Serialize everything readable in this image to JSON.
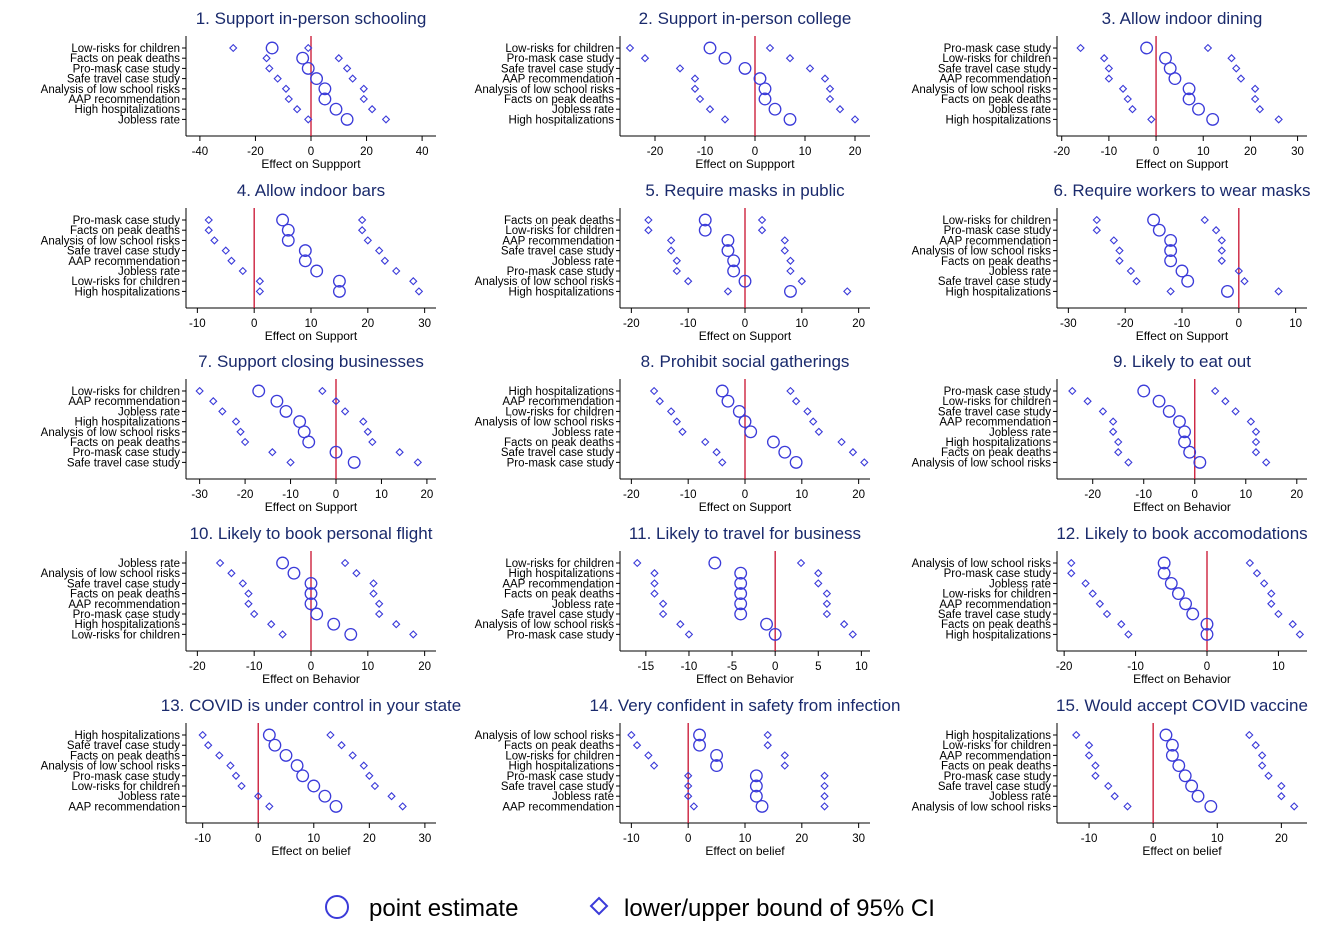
{
  "colors": {
    "marker": "#3b3bd9",
    "zero_line": "#c8102e",
    "axis": "#000000",
    "title": "#1a2a6c"
  },
  "legend": {
    "point_label": "point estimate",
    "ci_label": "lower/upper bound of 95% CI",
    "point_icon": "circle-icon",
    "ci_icon": "diamond-icon"
  },
  "chart_data": [
    {
      "type": "scatter",
      "title": "1. Support in-person schooling",
      "xlabel": "Effect on Suppport",
      "xlim": [
        -45,
        45
      ],
      "xticks": [
        -40,
        -20,
        0,
        20,
        40
      ],
      "rows": [
        {
          "label": "Low-risks for children",
          "lo": -28,
          "est": -14,
          "hi": -1
        },
        {
          "label": "Facts on peak deaths",
          "lo": -16,
          "est": -3,
          "hi": 10
        },
        {
          "label": "Pro-mask case study",
          "lo": -15,
          "est": -1,
          "hi": 13
        },
        {
          "label": "Safe travel case study",
          "lo": -12,
          "est": 2,
          "hi": 15
        },
        {
          "label": "Analysis of low school risks",
          "lo": -9,
          "est": 5,
          "hi": 19
        },
        {
          "label": "AAP recommendation",
          "lo": -8,
          "est": 5,
          "hi": 19
        },
        {
          "label": "High hospitalizations",
          "lo": -5,
          "est": 9,
          "hi": 22
        },
        {
          "label": "Jobless rate",
          "lo": -1,
          "est": 13,
          "hi": 27
        }
      ]
    },
    {
      "type": "scatter",
      "title": "2. Support in-person college",
      "xlabel": "Effect on Suppport",
      "xlim": [
        -27,
        23
      ],
      "xticks": [
        -20,
        -10,
        0,
        10,
        20
      ],
      "rows": [
        {
          "label": "Low-risks for children",
          "lo": -25,
          "est": -9,
          "hi": 3
        },
        {
          "label": "Pro-mask case study",
          "lo": -22,
          "est": -6,
          "hi": 7
        },
        {
          "label": "Safe travel case study",
          "lo": -15,
          "est": -2,
          "hi": 11
        },
        {
          "label": "AAP recommendation",
          "lo": -12,
          "est": 1,
          "hi": 14
        },
        {
          "label": "Analysis of low school risks",
          "lo": -12,
          "est": 2,
          "hi": 15
        },
        {
          "label": "Facts on peak deaths",
          "lo": -11,
          "est": 2,
          "hi": 15
        },
        {
          "label": "Jobless rate",
          "lo": -9,
          "est": 4,
          "hi": 17
        },
        {
          "label": "High hospitalizations",
          "lo": -6,
          "est": 7,
          "hi": 20
        }
      ]
    },
    {
      "type": "scatter",
      "title": "3. Allow indoor dining",
      "xlabel": "Effect on Support",
      "xlim": [
        -21,
        32
      ],
      "xticks": [
        -20,
        -10,
        0,
        10,
        20,
        30
      ],
      "rows": [
        {
          "label": "Pro-mask case study",
          "lo": -16,
          "est": -2,
          "hi": 11
        },
        {
          "label": "Low-risks for children",
          "lo": -11,
          "est": 2,
          "hi": 16
        },
        {
          "label": "Safe travel case study",
          "lo": -10,
          "est": 3,
          "hi": 17
        },
        {
          "label": "AAP recommendation",
          "lo": -10,
          "est": 4,
          "hi": 18
        },
        {
          "label": "Analysis of low school risks",
          "lo": -7,
          "est": 7,
          "hi": 21
        },
        {
          "label": "Facts on peak deaths",
          "lo": -6,
          "est": 7,
          "hi": 21
        },
        {
          "label": "Jobless rate",
          "lo": -5,
          "est": 9,
          "hi": 22
        },
        {
          "label": "High hospitalizations",
          "lo": -1,
          "est": 12,
          "hi": 26
        }
      ]
    },
    {
      "type": "scatter",
      "title": "4. Allow indoor bars",
      "xlabel": "Effect on Support",
      "xlim": [
        -12,
        32
      ],
      "xticks": [
        -10,
        0,
        10,
        20,
        30
      ],
      "rows": [
        {
          "label": "Pro-mask case study",
          "lo": -8,
          "est": 5,
          "hi": 19
        },
        {
          "label": "Facts on peak deaths",
          "lo": -8,
          "est": 6,
          "hi": 19
        },
        {
          "label": "Analysis of low school risks",
          "lo": -7,
          "est": 6,
          "hi": 20
        },
        {
          "label": "Safe travel case study",
          "lo": -5,
          "est": 9,
          "hi": 22
        },
        {
          "label": "AAP recommendation",
          "lo": -4,
          "est": 9,
          "hi": 23
        },
        {
          "label": "Jobless rate",
          "lo": -2,
          "est": 11,
          "hi": 25
        },
        {
          "label": "Low-risks for children",
          "lo": 1,
          "est": 15,
          "hi": 28
        },
        {
          "label": "High hospitalizations",
          "lo": 1,
          "est": 15,
          "hi": 29
        }
      ]
    },
    {
      "type": "scatter",
      "title": "5. Require masks in public",
      "xlabel": "Effect on Support",
      "xlim": [
        -22,
        22
      ],
      "xticks": [
        -20,
        -10,
        0,
        10,
        20
      ],
      "rows": [
        {
          "label": "Facts on peak deaths",
          "lo": -17,
          "est": -7,
          "hi": 3
        },
        {
          "label": "Low-risks for children",
          "lo": -17,
          "est": -7,
          "hi": 3
        },
        {
          "label": "AAP recommendation",
          "lo": -13,
          "est": -3,
          "hi": 7
        },
        {
          "label": "Safe travel case study",
          "lo": -13,
          "est": -3,
          "hi": 7
        },
        {
          "label": "Jobless rate",
          "lo": -12,
          "est": -2,
          "hi": 8
        },
        {
          "label": "Pro-mask case study",
          "lo": -12,
          "est": -2,
          "hi": 8
        },
        {
          "label": "Analysis of low school risks",
          "lo": -10,
          "est": 0,
          "hi": 10
        },
        {
          "label": "High hospitalizations",
          "lo": -3,
          "est": 8,
          "hi": 18
        }
      ]
    },
    {
      "type": "scatter",
      "title": "6. Require workers to wear masks",
      "xlabel": "Effect on Support",
      "xlim": [
        -32,
        12
      ],
      "xticks": [
        -30,
        -20,
        -10,
        0,
        10
      ],
      "rows": [
        {
          "label": "Low-risks for children",
          "lo": -25,
          "est": -15,
          "hi": -6
        },
        {
          "label": "Pro-mask case study",
          "lo": -25,
          "est": -14,
          "hi": -4
        },
        {
          "label": "AAP recommendation",
          "lo": -22,
          "est": -12,
          "hi": -3
        },
        {
          "label": "Analysis of low school risks",
          "lo": -21,
          "est": -12,
          "hi": -3
        },
        {
          "label": "Facts on peak deaths",
          "lo": -21,
          "est": -12,
          "hi": -3
        },
        {
          "label": "Jobless rate",
          "lo": -19,
          "est": -10,
          "hi": 0
        },
        {
          "label": "Safe travel case study",
          "lo": -18,
          "est": -9,
          "hi": 1
        },
        {
          "label": "High hospitalizations",
          "lo": -12,
          "est": -2,
          "hi": 7
        }
      ]
    },
    {
      "type": "scatter",
      "title": "7. Support closing businesses",
      "xlabel": "Effect on Support",
      "xlim": [
        -33,
        22
      ],
      "xticks": [
        -30,
        -20,
        -10,
        0,
        10,
        20
      ],
      "rows": [
        {
          "label": "Low-risks for children",
          "lo": -30,
          "est": -17,
          "hi": -3
        },
        {
          "label": "AAP recommendation",
          "lo": -27,
          "est": -13,
          "hi": 0
        },
        {
          "label": "Jobless rate",
          "lo": -25,
          "est": -11,
          "hi": 2
        },
        {
          "label": "High hospitalizations",
          "lo": -22,
          "est": -8,
          "hi": 6
        },
        {
          "label": "Analysis of low school risks",
          "lo": -21,
          "est": -7,
          "hi": 7
        },
        {
          "label": "Facts on peak deaths",
          "lo": -20,
          "est": -6,
          "hi": 8
        },
        {
          "label": "Pro-mask case study",
          "lo": -14,
          "est": 0,
          "hi": 14
        },
        {
          "label": "Safe travel case study",
          "lo": -10,
          "est": 4,
          "hi": 18
        }
      ]
    },
    {
      "type": "scatter",
      "title": "8. Prohibit social gatherings",
      "xlabel": "Effect on Support",
      "xlim": [
        -22,
        22
      ],
      "xticks": [
        -20,
        -10,
        0,
        10,
        20
      ],
      "rows": [
        {
          "label": "High hospitalizations",
          "lo": -16,
          "est": -4,
          "hi": 8
        },
        {
          "label": "AAP recommendation",
          "lo": -15,
          "est": -3,
          "hi": 9
        },
        {
          "label": "Low-risks for children",
          "lo": -13,
          "est": -1,
          "hi": 11
        },
        {
          "label": "Analysis of low school risks",
          "lo": -12,
          "est": 0,
          "hi": 12
        },
        {
          "label": "Jobless rate",
          "lo": -11,
          "est": 1,
          "hi": 13
        },
        {
          "label": "Facts on peak deaths",
          "lo": -7,
          "est": 5,
          "hi": 17
        },
        {
          "label": "Safe travel case study",
          "lo": -5,
          "est": 7,
          "hi": 19
        },
        {
          "label": "Pro-mask case study",
          "lo": -4,
          "est": 9,
          "hi": 21
        }
      ]
    },
    {
      "type": "scatter",
      "title": "9. Likely to eat out",
      "xlabel": "Effect on Behavior",
      "xlim": [
        -27,
        22
      ],
      "xticks": [
        -20,
        -10,
        0,
        10,
        20
      ],
      "rows": [
        {
          "label": "Pro-mask case study",
          "lo": -24,
          "est": -10,
          "hi": 4
        },
        {
          "label": "Low-risks for children",
          "lo": -21,
          "est": -7,
          "hi": 6
        },
        {
          "label": "Safe travel case study",
          "lo": -18,
          "est": -5,
          "hi": 8
        },
        {
          "label": "AAP recommendation",
          "lo": -16,
          "est": -3,
          "hi": 11
        },
        {
          "label": "Jobless rate",
          "lo": -16,
          "est": -2,
          "hi": 12
        },
        {
          "label": "High hospitalizations",
          "lo": -15,
          "est": -2,
          "hi": 12
        },
        {
          "label": "Facts on peak deaths",
          "lo": -15,
          "est": -1,
          "hi": 12
        },
        {
          "label": "Analysis of low school risks",
          "lo": -13,
          "est": 1,
          "hi": 14
        }
      ]
    },
    {
      "type": "scatter",
      "title": "10. Likely to book personal flight",
      "xlabel": "Effect on Behavior",
      "xlim": [
        -22,
        22
      ],
      "xticks": [
        -20,
        -10,
        0,
        10,
        20
      ],
      "rows": [
        {
          "label": "Jobless rate",
          "lo": -16,
          "est": -5,
          "hi": 6
        },
        {
          "label": "Analysis of low school risks",
          "lo": -14,
          "est": -3,
          "hi": 8
        },
        {
          "label": "Safe travel case study",
          "lo": -12,
          "est": 0,
          "hi": 11
        },
        {
          "label": "Facts on peak deaths",
          "lo": -11,
          "est": 0,
          "hi": 11
        },
        {
          "label": "AAP recommendation",
          "lo": -11,
          "est": 0,
          "hi": 12
        },
        {
          "label": "Pro-mask case study",
          "lo": -10,
          "est": 1,
          "hi": 12
        },
        {
          "label": "High hospitalizations",
          "lo": -7,
          "est": 4,
          "hi": 15
        },
        {
          "label": "Low-risks for children",
          "lo": -5,
          "est": 7,
          "hi": 18
        }
      ]
    },
    {
      "type": "scatter",
      "title": "11. Likely to travel for business",
      "xlabel": "Effect on Behavior",
      "xlim": [
        -18,
        11
      ],
      "xticks": [
        -15,
        -10,
        -5,
        0,
        5,
        10
      ],
      "rows": [
        {
          "label": "Low-risks for children",
          "lo": -16,
          "est": -7,
          "hi": 3
        },
        {
          "label": "High hospitalizations",
          "lo": -14,
          "est": -4,
          "hi": 5
        },
        {
          "label": "AAP recommendation",
          "lo": -14,
          "est": -4,
          "hi": 5
        },
        {
          "label": "Facts on peak deaths",
          "lo": -14,
          "est": -4,
          "hi": 6
        },
        {
          "label": "Jobless rate",
          "lo": -13,
          "est": -4,
          "hi": 6
        },
        {
          "label": "Safe travel case study",
          "lo": -13,
          "est": -4,
          "hi": 6
        },
        {
          "label": "Analysis of low school risks",
          "lo": -11,
          "est": -1,
          "hi": 8
        },
        {
          "label": "Pro-mask case study",
          "lo": -10,
          "est": 0,
          "hi": 9
        }
      ]
    },
    {
      "type": "scatter",
      "title": "12. Likely to book accomodations",
      "xlabel": "Effect on Behavior",
      "xlim": [
        -21,
        14
      ],
      "xticks": [
        -20,
        -10,
        0,
        10
      ],
      "rows": [
        {
          "label": "Analysis of low school risks",
          "lo": -19,
          "est": -6,
          "hi": 6
        },
        {
          "label": "Pro-mask case study",
          "lo": -19,
          "est": -6,
          "hi": 7
        },
        {
          "label": "Jobless rate",
          "lo": -17,
          "est": -5,
          "hi": 8
        },
        {
          "label": "Low-risks for children",
          "lo": -16,
          "est": -4,
          "hi": 9
        },
        {
          "label": "AAP recommendation",
          "lo": -15,
          "est": -3,
          "hi": 9
        },
        {
          "label": "Safe travel case study",
          "lo": -14,
          "est": -2,
          "hi": 10
        },
        {
          "label": "Facts on peak deaths",
          "lo": -12,
          "est": 0,
          "hi": 12
        },
        {
          "label": "High hospitalizations",
          "lo": -11,
          "est": 0,
          "hi": 13
        }
      ]
    },
    {
      "type": "scatter",
      "title": "13. COVID is under control in your state",
      "xlabel": "Effect on belief",
      "xlim": [
        -13,
        32
      ],
      "xticks": [
        -10,
        0,
        10,
        20,
        30
      ],
      "rows": [
        {
          "label": "High hospitalizations",
          "lo": -10,
          "est": 2,
          "hi": 13
        },
        {
          "label": "Safe travel case study",
          "lo": -9,
          "est": 3,
          "hi": 15
        },
        {
          "label": "Facts on peak deaths",
          "lo": -7,
          "est": 5,
          "hi": 17
        },
        {
          "label": "Analysis of low school risks",
          "lo": -5,
          "est": 7,
          "hi": 19
        },
        {
          "label": "Pro-mask case study",
          "lo": -4,
          "est": 8,
          "hi": 20
        },
        {
          "label": "Low-risks for children",
          "lo": -3,
          "est": 10,
          "hi": 21
        },
        {
          "label": "Jobless rate",
          "lo": 0,
          "est": 12,
          "hi": 24
        },
        {
          "label": "AAP recommendation",
          "lo": 2,
          "est": 14,
          "hi": 26
        }
      ]
    },
    {
      "type": "scatter",
      "title": "14. Very confident in safety from infection",
      "xlabel": "Effect on belief",
      "xlim": [
        -12,
        32
      ],
      "xticks": [
        -10,
        0,
        10,
        20,
        30
      ],
      "rows": [
        {
          "label": "Analysis of low school risks",
          "lo": -10,
          "est": 2,
          "hi": 14
        },
        {
          "label": "Facts on peak deaths",
          "lo": -9,
          "est": 2,
          "hi": 14
        },
        {
          "label": "Low-risks for children",
          "lo": -7,
          "est": 5,
          "hi": 17
        },
        {
          "label": "High hospitalizations",
          "lo": -6,
          "est": 5,
          "hi": 17
        },
        {
          "label": "Pro-mask case study",
          "lo": 0,
          "est": 12,
          "hi": 24
        },
        {
          "label": "Safe travel case study",
          "lo": 0,
          "est": 12,
          "hi": 24
        },
        {
          "label": "Jobless rate",
          "lo": 0,
          "est": 12,
          "hi": 24
        },
        {
          "label": "AAP recommendation",
          "lo": 1,
          "est": 13,
          "hi": 24
        }
      ]
    },
    {
      "type": "scatter",
      "title": "15. Would accept COVID vaccine",
      "xlabel": "Effect on belief",
      "xlim": [
        -15,
        24
      ],
      "xticks": [
        -10,
        0,
        10,
        20
      ],
      "rows": [
        {
          "label": "High hospitalizations",
          "lo": -12,
          "est": 2,
          "hi": 15
        },
        {
          "label": "Low-risks for children",
          "lo": -10,
          "est": 3,
          "hi": 16
        },
        {
          "label": "AAP recommendation",
          "lo": -10,
          "est": 3,
          "hi": 17
        },
        {
          "label": "Facts on peak deaths",
          "lo": -9,
          "est": 4,
          "hi": 17
        },
        {
          "label": "Pro-mask case study",
          "lo": -9,
          "est": 5,
          "hi": 18
        },
        {
          "label": "Safe travel case study",
          "lo": -7,
          "est": 6,
          "hi": 20
        },
        {
          "label": "Jobless rate",
          "lo": -6,
          "est": 7,
          "hi": 20
        },
        {
          "label": "Analysis of low school risks",
          "lo": -4,
          "est": 9,
          "hi": 22
        }
      ]
    }
  ]
}
